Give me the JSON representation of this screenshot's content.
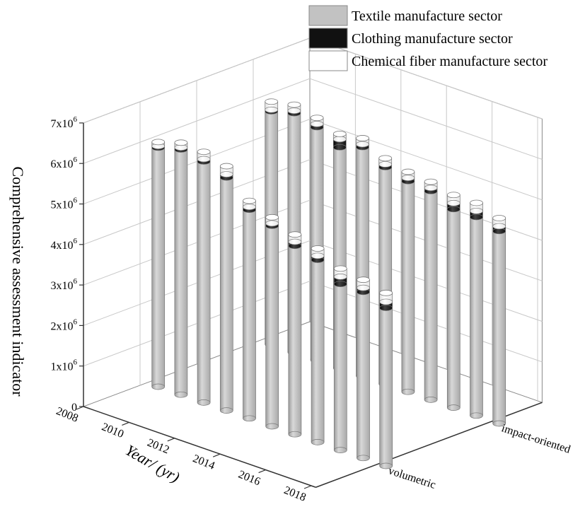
{
  "chart_data": {
    "type": "bar",
    "style": "3d-stacked-cylinder",
    "title": "",
    "ylabel": "Comprehensive assessment indicator",
    "xlabel": "Year/ (yr)",
    "zlabel": "",
    "ylim": [
      0,
      7000000
    ],
    "ytick_labels": [
      "0",
      "1x10",
      "2x10",
      "3x10",
      "4x10",
      "5x10",
      "6x10",
      "7x10"
    ],
    "ytick_exponents": [
      "",
      "6",
      "6",
      "6",
      "6",
      "6",
      "6",
      "6"
    ],
    "x_tick_labels": [
      "2008",
      "2010",
      "2012",
      "2014",
      "2016",
      "2018"
    ],
    "years": [
      "2008",
      "2009",
      "2010",
      "2011",
      "2012",
      "2013",
      "2014",
      "2015",
      "2016",
      "2017",
      "2018"
    ],
    "groups": [
      "volumetric",
      "impact-oriented"
    ],
    "grid": true,
    "legend_position": "top-right",
    "series": [
      {
        "name": "Textile manufacture sector",
        "color": "#c2c2c2",
        "values": {
          "volumetric": [
            5900000,
            6050000,
            5950000,
            5750000,
            5150000,
            4950000,
            4650000,
            4500000,
            4100000,
            4100000,
            3900000
          ],
          "impact-oriented": [
            5750000,
            5900000,
            5750000,
            5450000,
            5650000,
            5350000,
            5200000,
            5150000,
            4900000,
            4900000,
            4750000
          ]
        }
      },
      {
        "name": "Clothing manufacture sector",
        "color": "#111111",
        "values": {
          "volumetric": [
            40000,
            50000,
            60000,
            80000,
            70000,
            60000,
            100000,
            100000,
            180000,
            100000,
            150000
          ],
          "impact-oriented": [
            40000,
            60000,
            80000,
            200000,
            70000,
            70000,
            80000,
            80000,
            150000,
            150000,
            120000
          ]
        }
      },
      {
        "name": "Chemical fiber manufacture sector",
        "color": "#ffffff",
        "values": {
          "volumetric": [
            100000,
            120000,
            180000,
            200000,
            150000,
            150000,
            180000,
            180000,
            200000,
            200000,
            220000
          ],
          "impact-oriented": [
            200000,
            150000,
            150000,
            130000,
            150000,
            150000,
            150000,
            150000,
            200000,
            200000,
            200000
          ]
        }
      }
    ]
  }
}
